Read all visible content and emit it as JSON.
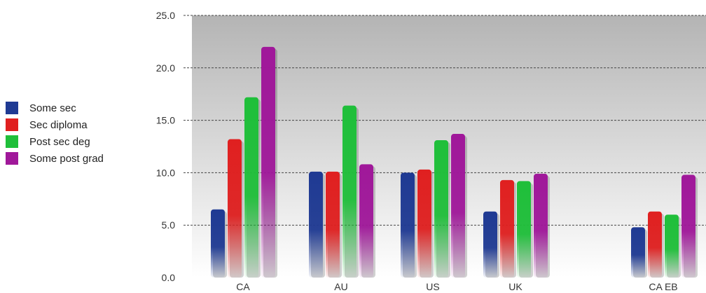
{
  "chart_data": {
    "type": "bar",
    "categories": [
      "CA",
      "AU",
      "US",
      "UK",
      "CA EB"
    ],
    "series": [
      {
        "name": "Some sec",
        "color": "#1f3a93",
        "values": [
          6.5,
          10.1,
          10.0,
          6.3,
          4.8
        ]
      },
      {
        "name": "Sec diploma",
        "color": "#e02020",
        "values": [
          13.2,
          10.1,
          10.3,
          9.3,
          6.3
        ]
      },
      {
        "name": "Post sec deg",
        "color": "#1fbf3a",
        "values": [
          17.2,
          16.4,
          13.1,
          9.2,
          6.0
        ]
      },
      {
        "name": "Some post grad",
        "color": "#a0189a",
        "values": [
          22.0,
          10.8,
          13.7,
          9.9,
          9.8
        ]
      }
    ],
    "yticks": [
      "0.0",
      "5.0",
      "10.0",
      "15.0",
      "20.0",
      "25.0"
    ],
    "ylim": [
      0,
      25
    ],
    "grid": true,
    "legend_position": "left"
  }
}
